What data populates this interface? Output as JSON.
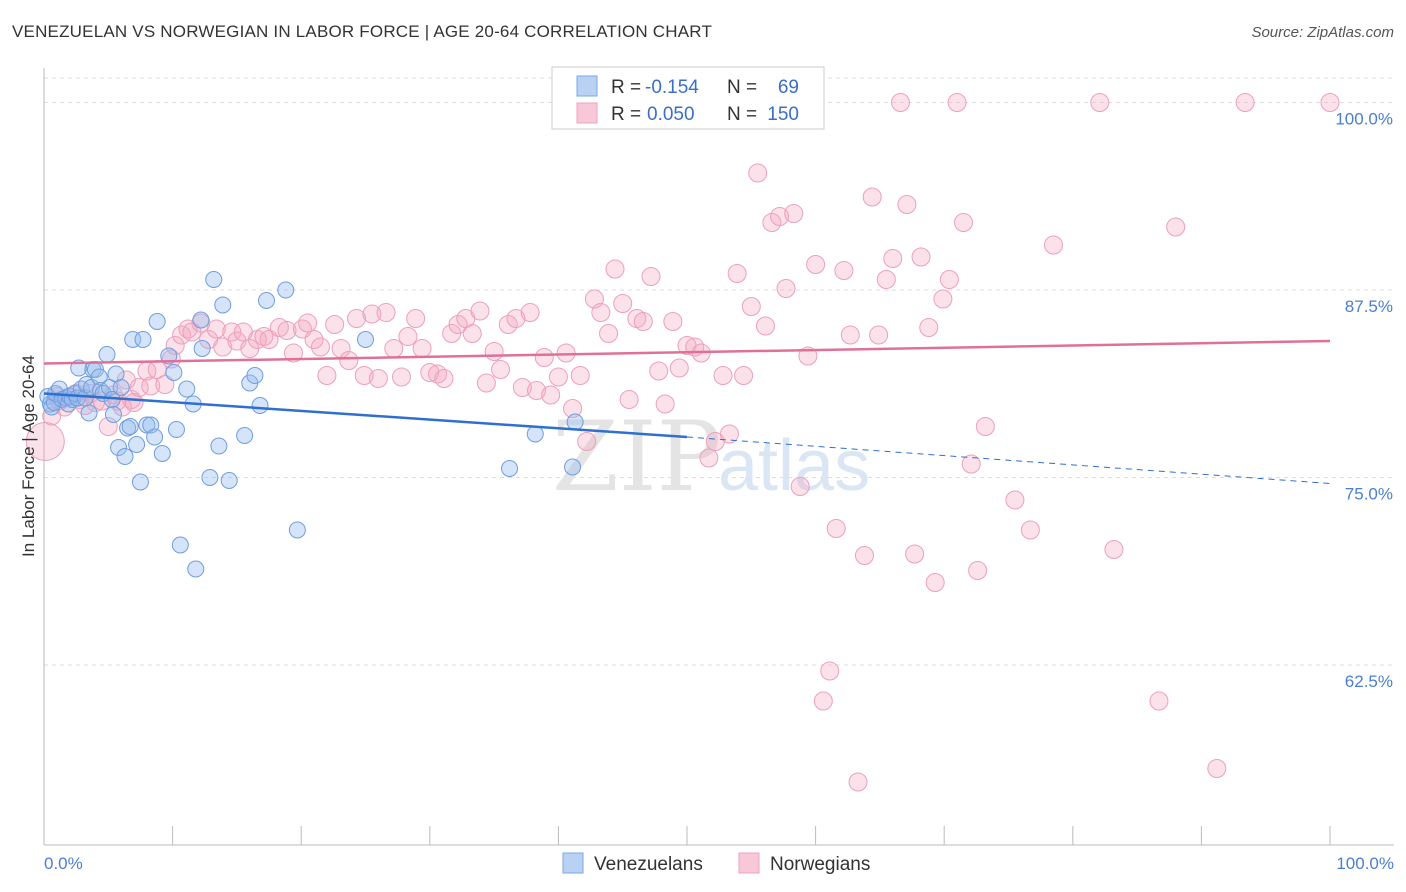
{
  "title": "VENEZUELAN VS NORWEGIAN IN LABOR FORCE | AGE 20-64 CORRELATION CHART",
  "source": "Source: ZipAtlas.com",
  "watermark": {
    "zip": "ZIP",
    "atlas": "atlas"
  },
  "legend": {
    "r_label": "R =",
    "n_label": "N =",
    "rows": [
      {
        "r": "-0.154",
        "n": "69"
      },
      {
        "r": "0.050",
        "n": "150"
      }
    ]
  },
  "bottom_legend": {
    "venezuelans": "Venezuelans",
    "norwegians": "Norwegians"
  },
  "chart_data": {
    "type": "scatter",
    "title": "VENEZUELAN VS NORWEGIAN IN LABOR FORCE | AGE 20-64 CORRELATION CHART",
    "xlabel": "",
    "ylabel": "In Labor Force | Age 20-64",
    "xlim": [
      0,
      100
    ],
    "ylim": [
      50.5,
      101.5
    ],
    "x_tick_labels": [
      "0.0%",
      "100.0%"
    ],
    "y_ticks": [
      62.5,
      75.0,
      87.5,
      100.0
    ],
    "y_tick_labels": [
      "62.5%",
      "75.0%",
      "87.5%",
      "100.0%"
    ],
    "grid": true,
    "legend_position": "top-center",
    "colors": {
      "venezuelans": "#7aa8e8",
      "norwegians": "#f0a0bc",
      "venezuelans_line": "#2f6fd0",
      "norwegians_line": "#e0709a"
    },
    "series": [
      {
        "name": "Venezuelans",
        "trend": {
          "x_start": 0,
          "y_start": 80.6,
          "x_solid_end": 50,
          "y_solid_end": 77.7,
          "x_end": 100,
          "y_end": 74.6
        },
        "points": [
          [
            0.3,
            80.4
          ],
          [
            0.5,
            79.9
          ],
          [
            0.6,
            79.7
          ],
          [
            0.8,
            80.0
          ],
          [
            0.9,
            80.6
          ],
          [
            1.2,
            80.9
          ],
          [
            1.4,
            80.2
          ],
          [
            1.7,
            80.3
          ],
          [
            1.9,
            79.9
          ],
          [
            2.0,
            80.4
          ],
          [
            2.2,
            80.2
          ],
          [
            2.4,
            80.6
          ],
          [
            2.6,
            80.3
          ],
          [
            2.7,
            82.3
          ],
          [
            2.9,
            80.9
          ],
          [
            3.2,
            80.3
          ],
          [
            3.3,
            81.2
          ],
          [
            3.5,
            79.3
          ],
          [
            3.7,
            81.0
          ],
          [
            3.8,
            82.2
          ],
          [
            4.0,
            82.2
          ],
          [
            4.3,
            81.7
          ],
          [
            4.4,
            80.8
          ],
          [
            4.6,
            80.6
          ],
          [
            4.9,
            83.2
          ],
          [
            5.1,
            81.0
          ],
          [
            5.3,
            80.2
          ],
          [
            5.4,
            79.2
          ],
          [
            5.6,
            81.9
          ],
          [
            5.8,
            77.0
          ],
          [
            6.0,
            81.0
          ],
          [
            6.3,
            76.4
          ],
          [
            6.5,
            78.3
          ],
          [
            6.7,
            78.4
          ],
          [
            6.9,
            84.2
          ],
          [
            7.2,
            77.2
          ],
          [
            7.5,
            74.7
          ],
          [
            7.7,
            84.2
          ],
          [
            8.0,
            78.5
          ],
          [
            8.3,
            78.5
          ],
          [
            8.6,
            77.7
          ],
          [
            8.8,
            85.4
          ],
          [
            9.2,
            76.6
          ],
          [
            9.7,
            83.1
          ],
          [
            10.1,
            82.0
          ],
          [
            10.3,
            78.2
          ],
          [
            10.6,
            70.5
          ],
          [
            11.1,
            80.9
          ],
          [
            11.6,
            79.9
          ],
          [
            11.8,
            68.9
          ],
          [
            12.2,
            85.5
          ],
          [
            12.3,
            83.6
          ],
          [
            12.9,
            75.0
          ],
          [
            13.2,
            88.2
          ],
          [
            13.6,
            77.1
          ],
          [
            13.9,
            86.5
          ],
          [
            14.4,
            74.8
          ],
          [
            15.6,
            77.8
          ],
          [
            16.0,
            81.3
          ],
          [
            16.4,
            81.8
          ],
          [
            16.8,
            79.8
          ],
          [
            17.3,
            86.8
          ],
          [
            18.8,
            87.5
          ],
          [
            19.7,
            71.5
          ],
          [
            25.0,
            84.2
          ],
          [
            36.2,
            75.6
          ],
          [
            38.2,
            77.9
          ],
          [
            41.1,
            75.7
          ],
          [
            41.3,
            78.7
          ]
        ]
      },
      {
        "name": "Norwegians",
        "trend": {
          "x_start": 0,
          "y_start": 82.6,
          "x_end": 100,
          "y_end": 84.1
        },
        "points": [
          [
            0.1,
            77.4
          ],
          [
            0.6,
            79.1
          ],
          [
            1.0,
            80.4
          ],
          [
            1.2,
            80.1
          ],
          [
            1.6,
            79.7
          ],
          [
            2.0,
            80.4
          ],
          [
            2.5,
            80.6
          ],
          [
            2.8,
            80.2
          ],
          [
            3.2,
            79.8
          ],
          [
            3.6,
            80.6
          ],
          [
            4.0,
            80.0
          ],
          [
            4.5,
            80.1
          ],
          [
            5.0,
            78.4
          ],
          [
            5.4,
            80.5
          ],
          [
            5.7,
            80.1
          ],
          [
            6.1,
            79.7
          ],
          [
            6.4,
            81.5
          ],
          [
            6.8,
            80.2
          ],
          [
            7.0,
            80.0
          ],
          [
            7.4,
            81.0
          ],
          [
            8.0,
            82.1
          ],
          [
            8.3,
            81.1
          ],
          [
            8.8,
            82.2
          ],
          [
            9.4,
            81.2
          ],
          [
            9.9,
            82.9
          ],
          [
            10.2,
            83.8
          ],
          [
            10.7,
            84.5
          ],
          [
            11.2,
            84.9
          ],
          [
            11.5,
            84.7
          ],
          [
            12.2,
            85.3
          ],
          [
            12.8,
            84.2
          ],
          [
            13.4,
            84.9
          ],
          [
            13.9,
            83.7
          ],
          [
            14.6,
            84.7
          ],
          [
            15.0,
            84.1
          ],
          [
            15.5,
            84.7
          ],
          [
            16.0,
            83.6
          ],
          [
            16.6,
            84.2
          ],
          [
            17.1,
            84.4
          ],
          [
            17.5,
            84.2
          ],
          [
            18.3,
            85.0
          ],
          [
            18.9,
            84.8
          ],
          [
            19.4,
            83.3
          ],
          [
            20.1,
            84.9
          ],
          [
            20.5,
            85.3
          ],
          [
            21.0,
            84.2
          ],
          [
            21.5,
            83.7
          ],
          [
            22.0,
            81.8
          ],
          [
            22.6,
            85.2
          ],
          [
            23.1,
            83.6
          ],
          [
            23.7,
            82.8
          ],
          [
            24.3,
            85.6
          ],
          [
            24.9,
            81.8
          ],
          [
            25.5,
            85.9
          ],
          [
            26.0,
            81.6
          ],
          [
            26.6,
            86.0
          ],
          [
            27.2,
            83.6
          ],
          [
            27.8,
            81.7
          ],
          [
            28.3,
            84.4
          ],
          [
            28.9,
            85.6
          ],
          [
            29.4,
            83.6
          ],
          [
            30.0,
            82.0
          ],
          [
            30.6,
            81.9
          ],
          [
            31.1,
            81.6
          ],
          [
            31.7,
            84.6
          ],
          [
            32.2,
            85.2
          ],
          [
            32.8,
            85.6
          ],
          [
            33.3,
            84.6
          ],
          [
            33.9,
            86.1
          ],
          [
            34.4,
            81.3
          ],
          [
            35.0,
            83.4
          ],
          [
            35.5,
            82.2
          ],
          [
            36.1,
            85.2
          ],
          [
            36.7,
            85.6
          ],
          [
            37.2,
            81.0
          ],
          [
            37.8,
            86.0
          ],
          [
            38.3,
            80.8
          ],
          [
            38.9,
            83.0
          ],
          [
            39.4,
            80.5
          ],
          [
            40.0,
            81.7
          ],
          [
            40.6,
            83.3
          ],
          [
            41.1,
            79.6
          ],
          [
            41.7,
            81.8
          ],
          [
            42.2,
            77.4
          ],
          [
            42.8,
            86.9
          ],
          [
            43.3,
            86.0
          ],
          [
            43.9,
            84.6
          ],
          [
            44.4,
            88.9
          ],
          [
            45.0,
            86.6
          ],
          [
            45.5,
            80.2
          ],
          [
            46.1,
            85.6
          ],
          [
            46.6,
            85.4
          ],
          [
            47.2,
            88.4
          ],
          [
            47.8,
            82.1
          ],
          [
            48.3,
            79.9
          ],
          [
            48.9,
            85.4
          ],
          [
            49.4,
            82.3
          ],
          [
            50.0,
            83.8
          ],
          [
            50.6,
            83.7
          ],
          [
            51.1,
            83.3
          ],
          [
            51.7,
            76.3
          ],
          [
            52.2,
            77.4
          ],
          [
            52.8,
            81.8
          ],
          [
            53.3,
            77.9
          ],
          [
            53.9,
            88.6
          ],
          [
            54.4,
            81.8
          ],
          [
            55.0,
            86.4
          ],
          [
            55.5,
            95.3
          ],
          [
            56.1,
            85.1
          ],
          [
            56.6,
            92.0
          ],
          [
            57.2,
            92.4
          ],
          [
            57.7,
            87.6
          ],
          [
            58.3,
            92.6
          ],
          [
            58.8,
            74.4
          ],
          [
            59.4,
            83.1
          ],
          [
            60.0,
            89.2
          ],
          [
            60.6,
            60.1
          ],
          [
            61.1,
            62.1
          ],
          [
            61.6,
            71.6
          ],
          [
            62.2,
            88.8
          ],
          [
            62.7,
            84.5
          ],
          [
            63.3,
            54.7
          ],
          [
            63.8,
            69.8
          ],
          [
            64.4,
            93.7
          ],
          [
            64.9,
            84.5
          ],
          [
            65.5,
            88.2
          ],
          [
            66.0,
            89.6
          ],
          [
            66.6,
            100.0
          ],
          [
            67.1,
            93.2
          ],
          [
            67.7,
            69.9
          ],
          [
            68.2,
            89.7
          ],
          [
            68.8,
            85.0
          ],
          [
            69.3,
            68.0
          ],
          [
            69.9,
            86.9
          ],
          [
            70.4,
            88.2
          ],
          [
            71.0,
            100.0
          ],
          [
            71.5,
            92.0
          ],
          [
            72.1,
            75.9
          ],
          [
            72.6,
            68.8
          ],
          [
            73.2,
            78.4
          ],
          [
            75.5,
            73.5
          ],
          [
            76.7,
            71.5
          ],
          [
            78.5,
            90.5
          ],
          [
            82.1,
            100.0
          ],
          [
            83.2,
            70.2
          ],
          [
            86.7,
            60.1
          ],
          [
            88.0,
            91.7
          ],
          [
            91.2,
            55.6
          ],
          [
            93.4,
            100.0
          ],
          [
            100.0,
            100.0
          ]
        ]
      }
    ]
  }
}
